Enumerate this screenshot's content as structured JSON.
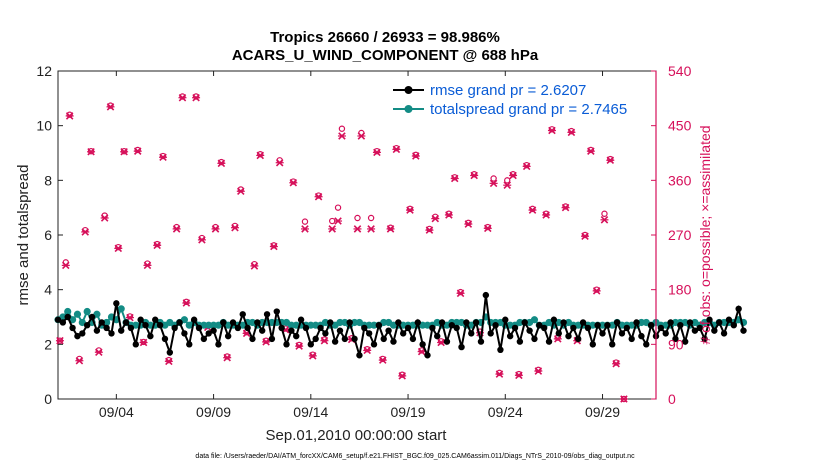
{
  "chart_data": {
    "type": "line",
    "title_line1": "Tropics 26660 / 26933 = 98.986%",
    "title_line2": "ACARS_U_WIND_COMPONENT @ 688 hPa",
    "xlabel": "Sep.01,2010 00:00:00 start",
    "ylabel_left": "rmse and totalspread",
    "ylabel_right": "# of obs: o=possible; ×=assimilated",
    "footnote": "data file: /Users/raeder/DAI/ATM_forcXX/CAM6_setup/f.e21.FHIST_BGC.f09_025.CAM6assim.011/Diags_NTrS_2010-09/obs_diag_output.nc",
    "xlim": [
      1,
      31.75
    ],
    "ylim_left": [
      0,
      12
    ],
    "ylim_right": [
      0,
      540
    ],
    "x_ticks": [
      4,
      9,
      14,
      19,
      24,
      29
    ],
    "x_tick_labels": [
      "09/04",
      "09/09",
      "09/14",
      "09/19",
      "09/24",
      "09/29"
    ],
    "y_ticks_left": [
      0,
      2,
      4,
      6,
      8,
      10,
      12
    ],
    "y_tick_labels_left": [
      "0",
      "2",
      "4",
      "6",
      "8",
      "10",
      "12"
    ],
    "y_ticks_right": [
      0,
      90,
      180,
      270,
      360,
      450,
      540
    ],
    "y_tick_labels_right": [
      "0",
      "90",
      "180",
      "270",
      "360",
      "450",
      "540"
    ],
    "colors": {
      "rmse": "#000000",
      "spread": "#138c85",
      "obs": "#d6105a",
      "axis_right": "#d6105a"
    },
    "legend": [
      {
        "name": "rmse grand pr = 2.6207",
        "color": "#000000"
      },
      {
        "name": "totalspread grand pr = 2.7465",
        "color": "#138c85"
      }
    ],
    "series": [
      {
        "name": "rmse",
        "x_start": 1.0,
        "x_step": 0.25,
        "values": [
          2.9,
          2.8,
          3.0,
          2.6,
          2.3,
          2.4,
          2.7,
          3.0,
          2.5,
          2.8,
          2.6,
          2.4,
          3.5,
          2.5,
          2.8,
          2.6,
          2.0,
          2.9,
          2.7,
          2.3,
          2.9,
          2.7,
          2.2,
          1.7,
          2.6,
          2.8,
          2.4,
          2.0,
          2.9,
          2.6,
          2.2,
          2.4,
          2.5,
          2.0,
          2.8,
          2.3,
          2.8,
          2.6,
          3.1,
          2.6,
          2.2,
          2.8,
          2.5,
          3.1,
          2.2,
          3.2,
          2.6,
          2.0,
          2.5,
          2.3,
          2.9,
          2.6,
          2.0,
          2.2,
          2.6,
          2.4,
          2.8,
          2.1,
          2.5,
          2.2,
          2.8,
          2.2,
          1.6,
          2.6,
          2.4,
          2.0,
          2.7,
          2.2,
          2.5,
          2.1,
          2.8,
          2.4,
          2.6,
          2.2,
          2.8,
          2.0,
          1.6,
          2.6,
          2.3,
          2.8,
          2.1,
          2.7,
          2.6,
          1.9,
          2.8,
          2.4,
          2.8,
          2.1,
          3.8,
          2.4,
          2.7,
          1.8,
          2.9,
          2.3,
          2.6,
          2.1,
          2.8,
          2.5,
          2.2,
          2.7,
          2.6,
          2.1,
          2.9,
          2.4,
          2.8,
          2.3,
          2.6,
          2.2,
          2.8,
          2.6,
          2.0,
          2.7,
          2.4,
          2.7,
          2.0,
          2.8,
          2.4,
          2.6,
          2.2,
          2.8,
          2.3,
          2.0,
          2.7,
          2.3,
          2.6,
          2.4,
          2.8,
          2.2,
          2.7,
          2.1,
          2.8,
          2.5,
          2.6,
          2.2,
          2.9,
          2.5,
          2.8,
          2.4,
          2.9,
          2.7,
          3.3,
          2.5
        ]
      },
      {
        "name": "totalspread",
        "x_start": 1.0,
        "x_step": 0.25,
        "values": [
          2.9,
          3.0,
          3.2,
          2.9,
          3.1,
          2.8,
          3.2,
          2.8,
          3.1,
          2.7,
          2.8,
          3.0,
          2.9,
          3.3,
          2.8,
          2.7,
          2.7,
          2.7,
          2.8,
          2.7,
          2.7,
          2.8,
          2.7,
          2.8,
          2.7,
          2.8,
          2.9,
          2.7,
          2.8,
          2.7,
          2.7,
          2.7,
          2.7,
          2.7,
          2.8,
          2.7,
          2.7,
          2.7,
          2.7,
          2.8,
          2.8,
          2.7,
          2.8,
          2.8,
          2.8,
          2.8,
          2.8,
          2.8,
          2.7,
          2.7,
          2.7,
          2.7,
          2.7,
          2.7,
          2.7,
          2.8,
          2.7,
          2.7,
          2.8,
          2.8,
          2.7,
          2.8,
          2.8,
          2.7,
          2.7,
          2.7,
          2.7,
          2.8,
          2.8,
          2.7,
          2.7,
          2.7,
          2.7,
          2.7,
          2.7,
          2.7,
          2.7,
          2.7,
          2.8,
          2.7,
          2.7,
          2.8,
          2.8,
          2.8,
          2.7,
          2.7,
          2.8,
          2.8,
          3.0,
          2.8,
          2.8,
          2.8,
          2.7,
          2.7,
          2.7,
          2.8,
          2.8,
          2.8,
          2.9,
          2.7,
          2.7,
          2.8,
          2.7,
          2.8,
          2.7,
          2.8,
          2.7,
          2.7,
          2.7,
          2.7,
          2.7,
          2.7,
          2.7,
          2.7,
          2.7,
          2.8,
          2.7,
          2.7,
          2.7,
          2.7,
          2.8,
          2.8,
          2.7,
          2.8,
          2.7,
          2.7,
          2.7,
          2.8,
          2.8,
          2.8,
          2.7,
          2.8,
          2.7,
          2.8,
          2.8,
          2.7,
          2.8,
          2.8,
          2.8,
          2.8,
          2.9,
          2.8
        ]
      },
      {
        "name": "obs_possible",
        "points": [
          [
            1.1,
            96
          ],
          [
            1.4,
            225
          ],
          [
            1.6,
            468
          ],
          [
            2.1,
            66
          ],
          [
            2.4,
            278
          ],
          [
            2.7,
            408
          ],
          [
            3.1,
            80
          ],
          [
            3.4,
            302
          ],
          [
            3.7,
            483
          ],
          [
            4.1,
            250
          ],
          [
            4.4,
            408
          ],
          [
            4.7,
            136
          ],
          [
            5.1,
            410
          ],
          [
            5.4,
            94
          ],
          [
            5.6,
            223
          ],
          [
            6.1,
            255
          ],
          [
            6.4,
            400
          ],
          [
            6.7,
            64
          ],
          [
            7.1,
            283
          ],
          [
            7.4,
            498
          ],
          [
            7.6,
            160
          ],
          [
            8.1,
            498
          ],
          [
            8.4,
            265
          ],
          [
            8.7,
            120
          ],
          [
            9.1,
            283
          ],
          [
            9.4,
            390
          ],
          [
            9.7,
            70
          ],
          [
            10.1,
            285
          ],
          [
            10.4,
            345
          ],
          [
            10.7,
            110
          ],
          [
            11.1,
            222
          ],
          [
            11.4,
            403
          ],
          [
            11.7,
            96
          ],
          [
            12.1,
            253
          ],
          [
            12.4,
            393
          ],
          [
            12.7,
            116
          ],
          [
            13.1,
            358
          ],
          [
            13.4,
            89
          ],
          [
            13.7,
            292
          ],
          [
            14.1,
            73
          ],
          [
            14.4,
            335
          ],
          [
            14.7,
            98
          ],
          [
            15.1,
            293
          ],
          [
            15.4,
            315
          ],
          [
            15.6,
            445
          ],
          [
            16.1,
            100
          ],
          [
            16.4,
            298
          ],
          [
            16.6,
            438
          ],
          [
            16.9,
            82
          ],
          [
            17.1,
            298
          ],
          [
            17.4,
            408
          ],
          [
            17.7,
            66
          ],
          [
            18.1,
            282
          ],
          [
            18.4,
            413
          ],
          [
            18.7,
            40
          ],
          [
            19.1,
            313
          ],
          [
            19.4,
            402
          ],
          [
            19.7,
            80
          ],
          [
            20.1,
            280
          ],
          [
            20.4,
            300
          ],
          [
            20.7,
            95
          ],
          [
            21.1,
            305
          ],
          [
            21.4,
            365
          ],
          [
            21.7,
            176
          ],
          [
            22.1,
            290
          ],
          [
            22.4,
            370
          ],
          [
            22.7,
            111
          ],
          [
            23.1,
            283
          ],
          [
            23.4,
            363
          ],
          [
            23.7,
            43
          ],
          [
            24.1,
            360
          ],
          [
            24.4,
            370
          ],
          [
            24.7,
            41
          ],
          [
            25.1,
            385
          ],
          [
            25.4,
            313
          ],
          [
            25.7,
            48
          ],
          [
            26.1,
            305
          ],
          [
            26.4,
            444
          ],
          [
            26.7,
            101
          ],
          [
            27.1,
            317
          ],
          [
            27.4,
            441
          ],
          [
            27.7,
            98
          ],
          [
            28.1,
            270
          ],
          [
            28.4,
            410
          ],
          [
            28.7,
            180
          ],
          [
            29.1,
            305
          ],
          [
            29.4,
            395
          ],
          [
            29.7,
            60
          ],
          [
            30.1,
            0
          ]
        ]
      },
      {
        "name": "obs_assimilated",
        "points": [
          [
            1.1,
            96
          ],
          [
            1.4,
            220
          ],
          [
            1.6,
            466
          ],
          [
            2.1,
            63
          ],
          [
            2.4,
            275
          ],
          [
            2.7,
            407
          ],
          [
            3.1,
            77
          ],
          [
            3.4,
            298
          ],
          [
            3.7,
            481
          ],
          [
            4.1,
            248
          ],
          [
            4.4,
            407
          ],
          [
            4.7,
            134
          ],
          [
            5.1,
            408
          ],
          [
            5.4,
            93
          ],
          [
            5.6,
            220
          ],
          [
            6.1,
            253
          ],
          [
            6.4,
            398
          ],
          [
            6.7,
            62
          ],
          [
            7.1,
            280
          ],
          [
            7.4,
            496
          ],
          [
            7.6,
            158
          ],
          [
            8.1,
            496
          ],
          [
            8.4,
            262
          ],
          [
            8.7,
            118
          ],
          [
            9.1,
            280
          ],
          [
            9.4,
            388
          ],
          [
            9.7,
            68
          ],
          [
            10.1,
            282
          ],
          [
            10.4,
            342
          ],
          [
            10.7,
            108
          ],
          [
            11.1,
            219
          ],
          [
            11.4,
            401
          ],
          [
            11.7,
            94
          ],
          [
            12.1,
            251
          ],
          [
            12.4,
            389
          ],
          [
            12.7,
            114
          ],
          [
            13.1,
            356
          ],
          [
            13.4,
            87
          ],
          [
            13.7,
            280
          ],
          [
            14.1,
            71
          ],
          [
            14.4,
            333
          ],
          [
            14.7,
            96
          ],
          [
            15.1,
            280
          ],
          [
            15.4,
            293
          ],
          [
            15.6,
            433
          ],
          [
            16.1,
            98
          ],
          [
            16.4,
            280
          ],
          [
            16.6,
            433
          ],
          [
            16.9,
            80
          ],
          [
            17.1,
            280
          ],
          [
            17.4,
            406
          ],
          [
            17.7,
            64
          ],
          [
            18.1,
            280
          ],
          [
            18.4,
            411
          ],
          [
            18.7,
            38
          ],
          [
            19.1,
            311
          ],
          [
            19.4,
            400
          ],
          [
            19.7,
            78
          ],
          [
            20.1,
            278
          ],
          [
            20.4,
            297
          ],
          [
            20.7,
            93
          ],
          [
            21.1,
            303
          ],
          [
            21.4,
            363
          ],
          [
            21.7,
            174
          ],
          [
            22.1,
            288
          ],
          [
            22.4,
            368
          ],
          [
            22.7,
            109
          ],
          [
            23.1,
            281
          ],
          [
            23.4,
            355
          ],
          [
            23.7,
            41
          ],
          [
            24.1,
            352
          ],
          [
            24.4,
            368
          ],
          [
            24.7,
            39
          ],
          [
            25.1,
            383
          ],
          [
            25.4,
            311
          ],
          [
            25.7,
            46
          ],
          [
            26.1,
            303
          ],
          [
            26.4,
            442
          ],
          [
            26.7,
            99
          ],
          [
            27.1,
            315
          ],
          [
            27.4,
            439
          ],
          [
            27.7,
            96
          ],
          [
            28.1,
            268
          ],
          [
            28.4,
            408
          ],
          [
            28.7,
            178
          ],
          [
            29.1,
            295
          ],
          [
            29.4,
            393
          ],
          [
            29.7,
            58
          ],
          [
            30.1,
            0
          ]
        ]
      }
    ]
  }
}
